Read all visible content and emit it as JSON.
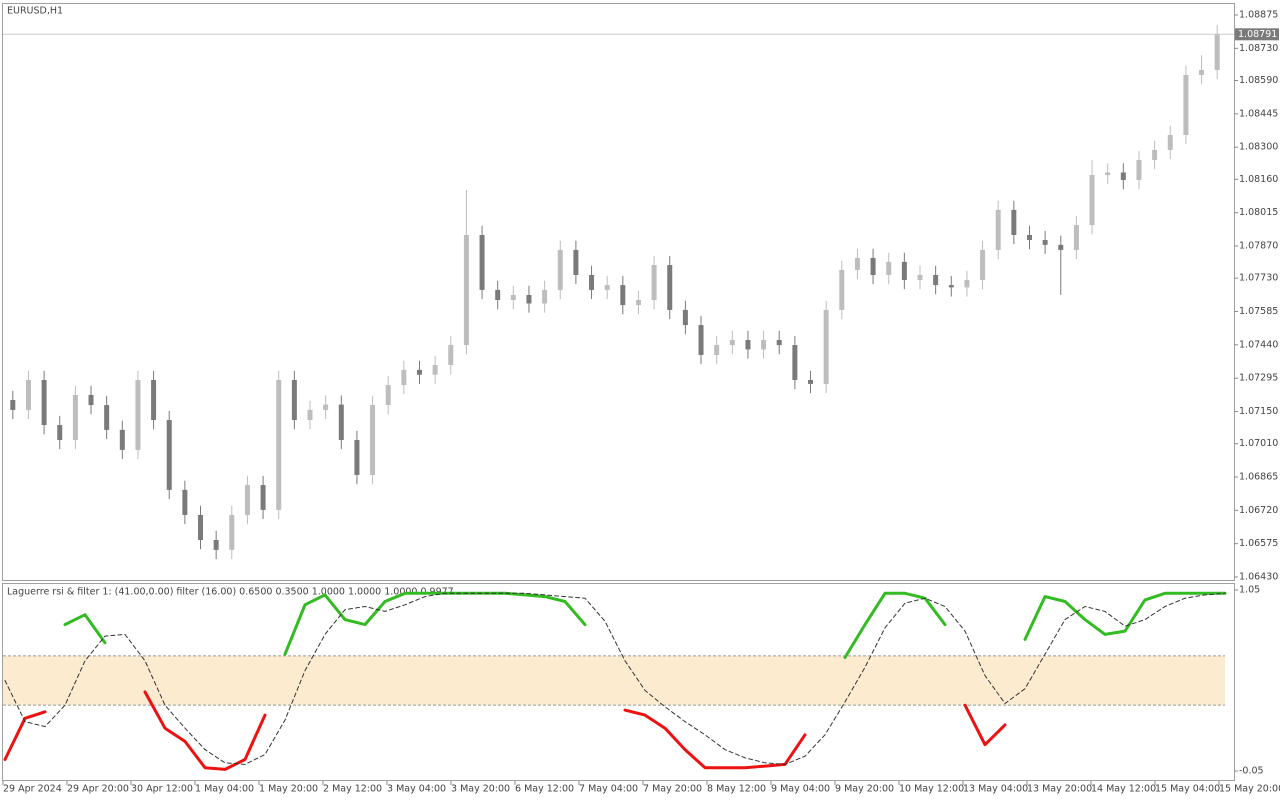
{
  "chart_data": [
    {
      "type": "candlestick",
      "title": "EURUSD,H1",
      "up_color": "#bdbdbd",
      "down_color": "#7a7a7a",
      "open": [
        1.072,
        1.07157,
        1.07287,
        1.07091,
        1.07026,
        1.07222,
        1.07178,
        1.0707,
        1.06983,
        1.07287,
        1.07113,
        1.06809,
        1.067,
        1.06591,
        1.06548,
        1.067,
        1.0683,
        1.06722,
        1.07287,
        1.07113,
        1.07157,
        1.0718,
        1.07026,
        1.06874,
        1.07178,
        1.07265,
        1.07331,
        1.0731,
        1.07352,
        1.07439,
        1.07918,
        1.07679,
        1.07635,
        1.07657,
        1.0762,
        1.07679,
        1.07853,
        1.07744,
        1.07679,
        1.077,
        1.07613,
        1.07635,
        1.07787,
        1.07592,
        1.07526,
        1.07396,
        1.07439,
        1.07461,
        1.0742,
        1.07461,
        1.07439,
        1.07287,
        1.0727,
        1.07592,
        1.07766,
        1.07818,
        1.07744,
        1.07801,
        1.07722,
        1.07744,
        1.077,
        1.0769,
        1.07722,
        1.07853,
        1.08027,
        1.07918,
        1.07896,
        1.07875,
        1.07853,
        1.07961,
        1.08179,
        1.0819,
        1.08157,
        1.08244,
        1.08288,
        1.08353,
        1.08614,
        1.08636
      ],
      "high": [
        1.0724,
        1.07327,
        1.07327,
        1.07131,
        1.07262,
        1.07262,
        1.07218,
        1.0711,
        1.07327,
        1.07327,
        1.07153,
        1.06849,
        1.0674,
        1.06631,
        1.0674,
        1.0687,
        1.0687,
        1.07327,
        1.07327,
        1.07197,
        1.0722,
        1.0722,
        1.07066,
        1.07218,
        1.07305,
        1.07371,
        1.07371,
        1.07392,
        1.07479,
        1.08114,
        1.07958,
        1.07719,
        1.07697,
        1.07697,
        1.07719,
        1.07893,
        1.07893,
        1.07784,
        1.0774,
        1.0774,
        1.07675,
        1.07827,
        1.07827,
        1.07632,
        1.07566,
        1.07479,
        1.07501,
        1.07501,
        1.07501,
        1.07501,
        1.07479,
        1.07327,
        1.07632,
        1.07806,
        1.07858,
        1.07858,
        1.07841,
        1.07841,
        1.07784,
        1.07784,
        1.0774,
        1.07762,
        1.07893,
        1.08067,
        1.08067,
        1.07958,
        1.07936,
        1.07915,
        1.08001,
        1.08244,
        1.0823,
        1.0823,
        1.08284,
        1.08328,
        1.08393,
        1.08654,
        1.087,
        1.08831
      ],
      "low": [
        1.07117,
        1.07117,
        1.07051,
        1.06986,
        1.06986,
        1.07138,
        1.0703,
        1.06943,
        1.06943,
        1.07073,
        1.06769,
        1.0666,
        1.06551,
        1.06508,
        1.06508,
        1.0666,
        1.06682,
        1.06682,
        1.07073,
        1.07073,
        1.07117,
        1.06986,
        1.06834,
        1.06834,
        1.07138,
        1.07225,
        1.0727,
        1.0727,
        1.07312,
        1.07399,
        1.07639,
        1.07595,
        1.07595,
        1.0758,
        1.0758,
        1.07639,
        1.07704,
        1.07639,
        1.07639,
        1.07573,
        1.07573,
        1.07595,
        1.07552,
        1.07486,
        1.07356,
        1.07356,
        1.07399,
        1.0738,
        1.0738,
        1.07399,
        1.07247,
        1.0723,
        1.0723,
        1.07552,
        1.07726,
        1.07704,
        1.07704,
        1.07682,
        1.07682,
        1.0766,
        1.0765,
        1.0765,
        1.07682,
        1.07813,
        1.07878,
        1.07856,
        1.07835,
        1.07657,
        1.07813,
        1.07921,
        1.08139,
        1.08117,
        1.08117,
        1.08204,
        1.08248,
        1.08313,
        1.08574,
        1.08596
      ],
      "close": [
        1.07157,
        1.07287,
        1.07091,
        1.07026,
        1.07222,
        1.07178,
        1.0707,
        1.06983,
        1.07287,
        1.07113,
        1.06809,
        1.067,
        1.06591,
        1.06548,
        1.067,
        1.0683,
        1.06722,
        1.07287,
        1.07113,
        1.07157,
        1.0718,
        1.07026,
        1.06874,
        1.07178,
        1.07265,
        1.07331,
        1.0731,
        1.07352,
        1.07439,
        1.07918,
        1.07679,
        1.07635,
        1.07657,
        1.0762,
        1.07679,
        1.07853,
        1.07744,
        1.07679,
        1.077,
        1.07613,
        1.07635,
        1.07787,
        1.07592,
        1.07526,
        1.07396,
        1.07439,
        1.07461,
        1.0742,
        1.07461,
        1.07439,
        1.07287,
        1.0727,
        1.07592,
        1.07766,
        1.07818,
        1.07744,
        1.07801,
        1.07722,
        1.07744,
        1.077,
        1.0769,
        1.07722,
        1.07853,
        1.08027,
        1.07918,
        1.07896,
        1.07875,
        1.07853,
        1.07961,
        1.08179,
        1.0819,
        1.08157,
        1.08244,
        1.08288,
        1.08353,
        1.08614,
        1.08636,
        1.08791
      ],
      "last_price": 1.08791,
      "ylim": [
        1.0643,
        1.08875
      ],
      "yticks": [
        1.08875,
        {
          "value": 1.0873,
          "label": "1.08730"
        },
        {
          "value": 1.0859,
          "label": "1.08590"
        },
        1.08445,
        {
          "value": 1.083,
          "label": "1.08300"
        },
        {
          "value": 1.0816,
          "label": "1.08160"
        },
        1.08015,
        {
          "value": 1.0787,
          "label": "1.07870"
        },
        {
          "value": 1.0773,
          "label": "1.07730"
        },
        1.07585,
        {
          "value": 1.0744,
          "label": "1.07440"
        },
        1.07295,
        {
          "value": 1.0715,
          "label": "1.07150"
        },
        {
          "value": 1.0701,
          "label": "1.07010"
        },
        1.06865,
        {
          "value": 1.0672,
          "label": "1.06720"
        },
        1.06575,
        {
          "value": 1.0643,
          "label": "1.06430"
        }
      ],
      "x_labels": [
        "29 Apr 2024",
        "29 Apr 20:00",
        "30 Apr 12:00",
        "1 May 04:00",
        "1 May 20:00",
        "2 May 12:00",
        "3 May 04:00",
        "3 May 20:00",
        "6 May 12:00",
        "7 May 04:00",
        "7 May 20:00",
        "8 May 12:00",
        "9 May 04:00",
        "9 May 20:00",
        "10 May 12:00",
        "13 May 04:00",
        "13 May 20:00",
        "14 May 12:00",
        "15 May 04:00",
        "15 May 20:00"
      ]
    },
    {
      "type": "line",
      "title": "Laguerre rsi & filter 1: (41.00,0.00) filter (16.00) 0.6500 0.3500 1.0000 1.0000 1.0000 0.9977",
      "ylim": [
        -0.05,
        1.05
      ],
      "yticks": [
        1.05,
        -0.05
      ],
      "band": [
        0.35,
        0.65
      ],
      "band_color": "#fdebd0",
      "series": [
        {
          "color": "#33bb22",
          "width": 3,
          "dash": false,
          "values": [
            null,
            null,
            null,
            0.84,
            0.9,
            0.73,
            null,
            null,
            null,
            null,
            null,
            null,
            null,
            null,
            0.66,
            0.96,
            1.02,
            0.87,
            0.84,
            0.98,
            1.03,
            1.03,
            1.03,
            1.03,
            1.03,
            1.03,
            1.02,
            1.01,
            0.98,
            0.84,
            null,
            null,
            null,
            null,
            null,
            null,
            null,
            null,
            null,
            null,
            null,
            null,
            0.64,
            0.84,
            1.03,
            1.03,
            1.0,
            0.84,
            null,
            null,
            null,
            0.75,
            1.01,
            0.98,
            0.87,
            0.78,
            0.8,
            0.99,
            1.03,
            1.03,
            1.03,
            1.03
          ]
        },
        {
          "color": "#ee1111",
          "width": 3,
          "dash": false,
          "values": [
            0.02,
            0.27,
            0.31,
            null,
            null,
            null,
            null,
            0.43,
            0.21,
            0.13,
            -0.03,
            -0.04,
            0.02,
            0.29,
            null,
            null,
            null,
            null,
            null,
            null,
            null,
            null,
            null,
            null,
            null,
            null,
            null,
            null,
            null,
            null,
            null,
            0.32,
            0.29,
            0.21,
            0.08,
            -0.03,
            -0.03,
            -0.03,
            -0.02,
            -0.01,
            0.17,
            null,
            null,
            null,
            null,
            null,
            null,
            null,
            0.35,
            0.11,
            0.23,
            null,
            null,
            null,
            null,
            null,
            null,
            null,
            null,
            null,
            null,
            null
          ]
        },
        {
          "color": "#333333",
          "width": 1,
          "dash": true,
          "values": [
            0.5,
            0.25,
            0.22,
            0.35,
            0.62,
            0.77,
            0.78,
            0.62,
            0.35,
            0.21,
            0.08,
            0.0,
            -0.01,
            0.05,
            0.26,
            0.56,
            0.78,
            0.93,
            0.95,
            0.92,
            0.96,
            1.01,
            1.03,
            1.03,
            1.03,
            1.03,
            1.03,
            1.02,
            1.01,
            1.0,
            0.86,
            0.62,
            0.44,
            0.34,
            0.25,
            0.17,
            0.08,
            0.03,
            0.0,
            -0.01,
            0.04,
            0.17,
            0.37,
            0.58,
            0.82,
            0.97,
            1.0,
            0.95,
            0.8,
            0.53,
            0.36,
            0.45,
            0.66,
            0.87,
            0.95,
            0.92,
            0.83,
            0.87,
            0.95,
            1.0,
            1.02,
            1.03
          ]
        }
      ]
    }
  ]
}
